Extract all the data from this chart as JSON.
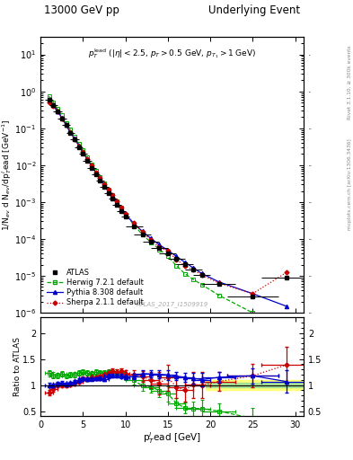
{
  "title_left": "13000 GeV pp",
  "title_right": "Underlying Event",
  "watermark": "ATLAS_2017_I1509919",
  "ylabel_main": "1/N$_{ev}$ d N$_{ev}$/dp$_T^{l}$ead [GeV$^{-1}$]",
  "ylabel_ratio": "Ratio to ATLAS",
  "xlabel": "p$_T^{l}$ead [GeV]",
  "ylim_main_lo": 1e-06,
  "ylim_main_hi": 30,
  "ylim_ratio_lo": 0.4,
  "ylim_ratio_hi": 2.3,
  "xlim_lo": 0,
  "xlim_hi": 31,
  "atlas_x": [
    1.0,
    1.5,
    2.0,
    2.5,
    3.0,
    3.5,
    4.0,
    4.5,
    5.0,
    5.5,
    6.0,
    6.5,
    7.0,
    7.5,
    8.0,
    8.5,
    9.0,
    9.5,
    10.0,
    11.0,
    12.0,
    13.0,
    14.0,
    15.0,
    16.0,
    17.0,
    18.0,
    19.0,
    21.0,
    25.0,
    29.0
  ],
  "atlas_y": [
    0.6,
    0.43,
    0.28,
    0.185,
    0.12,
    0.076,
    0.049,
    0.031,
    0.02,
    0.013,
    0.0085,
    0.0057,
    0.0038,
    0.0026,
    0.00175,
    0.00122,
    0.00083,
    0.00057,
    0.0004,
    0.000225,
    0.000132,
    8.5e-05,
    5.8e-05,
    4.1e-05,
    2.9e-05,
    2.05e-05,
    1.45e-05,
    1.05e-05,
    6e-06,
    2.8e-06,
    9e-06
  ],
  "atlas_xerr": [
    0.5,
    0.5,
    0.5,
    0.5,
    0.5,
    0.5,
    0.5,
    0.5,
    0.5,
    0.5,
    0.5,
    0.5,
    0.5,
    0.5,
    0.5,
    0.5,
    0.5,
    0.5,
    0.5,
    1.0,
    1.0,
    1.0,
    1.0,
    1.0,
    1.0,
    1.0,
    1.0,
    1.0,
    2.0,
    3.0,
    3.0
  ],
  "atlas_yerr": [
    0.015,
    0.012,
    0.008,
    0.005,
    0.004,
    0.0025,
    0.0016,
    0.001,
    0.00065,
    0.00042,
    0.00028,
    0.00019,
    0.000125,
    8.6e-05,
    5.8e-05,
    4e-05,
    2.7e-05,
    1.9e-05,
    1.35e-05,
    7.8e-06,
    4.7e-06,
    3e-06,
    2.1e-06,
    1.5e-06,
    1.1e-06,
    7.8e-07,
    5.5e-07,
    4e-07,
    2.5e-07,
    1.4e-07,
    1e-06
  ],
  "herwig_x": [
    1.0,
    1.5,
    2.0,
    2.5,
    3.0,
    3.5,
    4.0,
    4.5,
    5.0,
    5.5,
    6.0,
    6.5,
    7.0,
    7.5,
    8.0,
    8.5,
    9.0,
    9.5,
    10.0,
    11.0,
    12.0,
    13.0,
    14.0,
    15.0,
    16.0,
    17.0,
    18.0,
    19.0,
    21.0,
    25.0,
    29.0
  ],
  "herwig_y": [
    0.74,
    0.51,
    0.33,
    0.225,
    0.141,
    0.091,
    0.059,
    0.038,
    0.025,
    0.016,
    0.0104,
    0.0071,
    0.0047,
    0.0032,
    0.00218,
    0.00153,
    0.00103,
    0.00071,
    0.00046,
    0.000245,
    0.00013,
    8.2e-05,
    5.2e-05,
    3.4e-05,
    1.9e-05,
    1.15e-05,
    8e-06,
    5.8e-06,
    3e-06,
    1e-06,
    5e-07
  ],
  "pythia_x": [
    1.0,
    1.5,
    2.0,
    2.5,
    3.0,
    3.5,
    4.0,
    4.5,
    5.0,
    5.5,
    6.0,
    6.5,
    7.0,
    7.5,
    8.0,
    8.5,
    9.0,
    9.5,
    10.0,
    11.0,
    12.0,
    13.0,
    14.0,
    15.0,
    16.0,
    17.0,
    18.0,
    19.0,
    21.0,
    25.0,
    29.0
  ],
  "pythia_y": [
    0.6,
    0.43,
    0.29,
    0.193,
    0.122,
    0.079,
    0.052,
    0.034,
    0.0225,
    0.0145,
    0.0095,
    0.0064,
    0.0043,
    0.0029,
    0.00206,
    0.00144,
    0.00098,
    0.00067,
    0.00046,
    0.000262,
    0.000161,
    0.000103,
    7e-05,
    4.9e-05,
    3.4e-05,
    2.35e-05,
    1.64e-05,
    1.16e-05,
    6.9e-06,
    3.3e-06,
    1.5e-06
  ],
  "sherpa_x": [
    1.0,
    1.5,
    2.0,
    2.5,
    3.0,
    3.5,
    4.0,
    4.5,
    5.0,
    5.5,
    6.0,
    6.5,
    7.0,
    7.5,
    8.0,
    8.5,
    9.0,
    9.5,
    10.0,
    11.0,
    12.0,
    13.0,
    14.0,
    15.0,
    16.0,
    17.0,
    18.0,
    19.0,
    21.0,
    25.0,
    29.0
  ],
  "sherpa_y": [
    0.51,
    0.4,
    0.28,
    0.185,
    0.12,
    0.077,
    0.051,
    0.033,
    0.0225,
    0.0145,
    0.0098,
    0.0065,
    0.0044,
    0.0031,
    0.00217,
    0.00154,
    0.00104,
    0.00072,
    0.00049,
    0.000271,
    0.000154,
    9.3e-05,
    6e-05,
    4.7e-05,
    2.8e-05,
    1.85e-05,
    1.46e-05,
    1.05e-05,
    6.4e-06,
    3.3e-06,
    1.25e-05
  ],
  "herwig_ratio": [
    1.23,
    1.19,
    1.18,
    1.22,
    1.175,
    1.2,
    1.2,
    1.23,
    1.25,
    1.23,
    1.22,
    1.25,
    1.24,
    1.23,
    1.25,
    1.25,
    1.24,
    1.25,
    1.15,
    1.09,
    0.985,
    0.965,
    0.895,
    0.83,
    0.655,
    0.56,
    0.55,
    0.55,
    0.5,
    0.36,
    0.056
  ],
  "pythia_ratio": [
    1.0,
    1.0,
    1.035,
    1.045,
    1.017,
    1.039,
    1.061,
    1.097,
    1.125,
    1.115,
    1.118,
    1.123,
    1.132,
    1.115,
    1.177,
    1.18,
    1.18,
    1.175,
    1.15,
    1.164,
    1.22,
    1.212,
    1.207,
    1.195,
    1.172,
    1.146,
    1.131,
    1.105,
    1.15,
    1.179,
    1.067
  ],
  "sherpa_ratio": [
    0.85,
    0.93,
    1.0,
    1.0,
    1.0,
    1.013,
    1.041,
    1.065,
    1.125,
    1.115,
    1.153,
    1.14,
    1.158,
    1.192,
    1.24,
    1.262,
    1.253,
    1.263,
    1.225,
    1.204,
    1.167,
    1.094,
    1.034,
    1.146,
    0.966,
    0.902,
    1.007,
    1.0,
    1.067,
    1.179,
    1.389
  ],
  "herwig_ratio_yerr": [
    0.06,
    0.055,
    0.055,
    0.055,
    0.05,
    0.05,
    0.05,
    0.05,
    0.05,
    0.05,
    0.05,
    0.05,
    0.055,
    0.055,
    0.055,
    0.06,
    0.06,
    0.07,
    0.06,
    0.08,
    0.09,
    0.11,
    0.13,
    0.14,
    0.1,
    0.11,
    0.14,
    0.17,
    0.14,
    0.2,
    0.3
  ],
  "pythia_ratio_yerr": [
    0.04,
    0.035,
    0.035,
    0.035,
    0.03,
    0.03,
    0.03,
    0.03,
    0.03,
    0.03,
    0.03,
    0.03,
    0.035,
    0.035,
    0.04,
    0.04,
    0.04,
    0.045,
    0.04,
    0.05,
    0.06,
    0.07,
    0.08,
    0.09,
    0.08,
    0.09,
    0.11,
    0.13,
    0.1,
    0.15,
    0.22
  ],
  "sherpa_ratio_yerr": [
    0.05,
    0.05,
    0.05,
    0.05,
    0.04,
    0.04,
    0.04,
    0.04,
    0.04,
    0.04,
    0.04,
    0.04,
    0.05,
    0.05,
    0.055,
    0.055,
    0.055,
    0.065,
    0.055,
    0.075,
    0.1,
    0.16,
    0.22,
    0.25,
    0.21,
    0.22,
    0.25,
    0.25,
    0.18,
    0.22,
    0.35
  ],
  "band_x_start": 19.5,
  "band_x_end": 31,
  "band_inner": 0.05,
  "band_outer": 0.1,
  "color_atlas": "#000000",
  "color_herwig": "#00aa00",
  "color_pythia": "#0000cc",
  "color_sherpa": "#cc0000",
  "mcplots_label": "mcplots.cern.ch [arXiv:1306.3436]",
  "rivet_label": "Rivet 3.1.10, ≥ 300k events"
}
